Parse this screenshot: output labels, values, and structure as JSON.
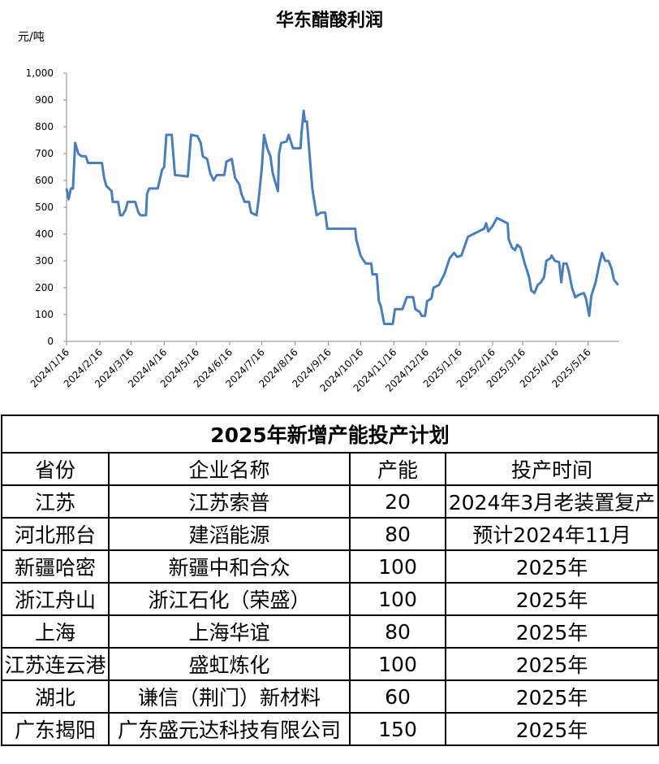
{
  "chart_data": {
    "type": "line",
    "title": "华东醋酸利润",
    "ylabel": "元/吨",
    "color": "#4a7ebb",
    "x": [
      "2024/1/16",
      "2024/1/18",
      "2024/1/20",
      "2024/1/22",
      "2024/1/24",
      "2024/1/27",
      "2024/1/30",
      "2024/2/3",
      "2024/2/5",
      "2024/2/18",
      "2024/2/20",
      "2024/2/22",
      "2024/2/27",
      "2024/2/28",
      "2024/3/4",
      "2024/3/6",
      "2024/3/8",
      "2024/3/11",
      "2024/3/13",
      "2024/3/20",
      "2024/3/23",
      "2024/3/25",
      "2024/3/30",
      "2024/3/31",
      "2024/4/2",
      "2024/4/10",
      "2024/4/14",
      "2024/4/16",
      "2024/4/18",
      "2024/4/23",
      "2024/4/26",
      "2024/5/8",
      "2024/5/11",
      "2024/5/17",
      "2024/5/20",
      "2024/5/22",
      "2024/5/26",
      "2024/5/29",
      "2024/6/1",
      "2024/6/4",
      "2024/6/11",
      "2024/6/13",
      "2024/6/18",
      "2024/6/21",
      "2024/6/25",
      "2024/6/27",
      "2024/6/30",
      "2024/7/4",
      "2024/7/6",
      "2024/7/11",
      "2024/7/13",
      "2024/7/16",
      "2024/7/18",
      "2024/7/21",
      "2024/7/24",
      "2024/7/26",
      "2024/7/28",
      "2024/7/31",
      "2024/8/1",
      "2024/8/3",
      "2024/8/8",
      "2024/8/10",
      "2024/8/14",
      "2024/8/21",
      "2024/8/22",
      "2024/8/24",
      "2024/8/25",
      "2024/8/27",
      "2024/9/1",
      "2024/9/5",
      "2024/9/9",
      "2024/9/13",
      "2024/9/15",
      "2024/10/11",
      "2024/10/12",
      "2024/10/16",
      "2024/10/19",
      "2024/10/21",
      "2024/10/26",
      "2024/10/27",
      "2024/10/31",
      "2024/11/2",
      "2024/11/4",
      "2024/11/7",
      "2024/11/15",
      "2024/11/17",
      "2024/11/24",
      "2024/11/28",
      "2024/12/4",
      "2024/12/6",
      "2024/12/10",
      "2024/12/12",
      "2024/12/15",
      "2024/12/17",
      "2024/12/21",
      "2024/12/23",
      "2024/12/28",
      "2025/1/2",
      "2025/1/7",
      "2025/1/11",
      "2025/1/14",
      "2025/1/18",
      "2025/1/24",
      "2025/1/29",
      "2025/2/3",
      "2025/2/8",
      "2025/2/10",
      "2025/2/12",
      "2025/2/16",
      "2025/2/20",
      "2025/2/25",
      "2025/3/2",
      "2025/3/3",
      "2025/3/6",
      "2025/3/9",
      "2025/3/11",
      "2025/3/14",
      "2025/3/18",
      "2025/3/22",
      "2025/3/24",
      "2025/3/27",
      "2025/3/30",
      "2025/4/2",
      "2025/4/5",
      "2025/4/7",
      "2025/4/11",
      "2025/4/12",
      "2025/4/15",
      "2025/4/19",
      "2025/4/21",
      "2025/4/23",
      "2025/4/26",
      "2025/4/28",
      "2025/5/1",
      "2025/5/4",
      "2025/5/8",
      "2025/5/12",
      "2025/5/14",
      "2025/5/17",
      "2025/5/19",
      "2025/5/23",
      "2025/5/26",
      "2025/5/29",
      "2025/6/1",
      "2025/6/4",
      "2025/6/7",
      "2025/6/9",
      "2025/6/13"
    ],
    "values": [
      570,
      530,
      570,
      570,
      740,
      700,
      690,
      690,
      665,
      665,
      610,
      580,
      560,
      520,
      520,
      470,
      470,
      490,
      520,
      520,
      480,
      470,
      470,
      550,
      570,
      570,
      640,
      650,
      770,
      770,
      620,
      615,
      770,
      765,
      740,
      690,
      680,
      625,
      600,
      620,
      620,
      670,
      680,
      610,
      585,
      550,
      520,
      520,
      480,
      470,
      530,
      650,
      770,
      720,
      690,
      630,
      600,
      560,
      700,
      740,
      745,
      770,
      720,
      720,
      780,
      860,
      820,
      820,
      570,
      470,
      480,
      480,
      420,
      420,
      380,
      320,
      300,
      290,
      290,
      250,
      250,
      150,
      130,
      65,
      65,
      120,
      120,
      165,
      165,
      120,
      110,
      95,
      95,
      150,
      160,
      200,
      210,
      250,
      310,
      330,
      315,
      320,
      390,
      400,
      410,
      420,
      440,
      410,
      430,
      460,
      450,
      440,
      380,
      350,
      340,
      360,
      350,
      290,
      240,
      190,
      180,
      210,
      220,
      240,
      300,
      310,
      320,
      300,
      295,
      220,
      290,
      290,
      260,
      200,
      165,
      175,
      180,
      160,
      95,
      170,
      220,
      280,
      330,
      300,
      300,
      270,
      230,
      210
    ],
    "xlim": [
      "2024/1/16",
      "2025/6/14"
    ],
    "xticks": [
      "2024/1/16",
      "2024/2/16",
      "2024/3/16",
      "2024/4/16",
      "2024/5/16",
      "2024/6/16",
      "2024/7/16",
      "2024/8/16",
      "2024/9/16",
      "2024/10/16",
      "2024/11/16",
      "2024/12/16",
      "2025/1/16",
      "2025/2/16",
      "2025/3/16",
      "2025/4/16",
      "2025/5/16"
    ],
    "ylim": [
      0,
      1000
    ],
    "yticks": [
      0,
      100,
      200,
      300,
      400,
      500,
      600,
      700,
      800,
      900,
      {
        "value": 1000,
        "label": "1,000"
      }
    ]
  },
  "table": {
    "title": "2025年新增产能投产计划",
    "header": [
      "省份",
      "企业名称",
      "产能",
      "投产时间"
    ],
    "rows": [
      [
        "江苏",
        "江苏索普",
        20,
        "2024年3月老装置复产"
      ],
      [
        "河北邢台",
        "建滔能源",
        80,
        "预计2024年11月"
      ],
      [
        "新疆哈密",
        "新疆中和合众",
        100,
        "2025年"
      ],
      [
        "浙江舟山",
        "浙江石化（荣盛）",
        100,
        "2025年"
      ],
      [
        "上海",
        "上海华谊",
        80,
        "2025年"
      ],
      [
        "江苏连云港",
        "盛虹炼化",
        100,
        "2025年"
      ],
      [
        "湖北",
        "谦信（荆门）新材料",
        60,
        "2025年"
      ],
      [
        "广东揭阳",
        "广东盛元达科技有限公司",
        150,
        "2025年"
      ]
    ]
  }
}
